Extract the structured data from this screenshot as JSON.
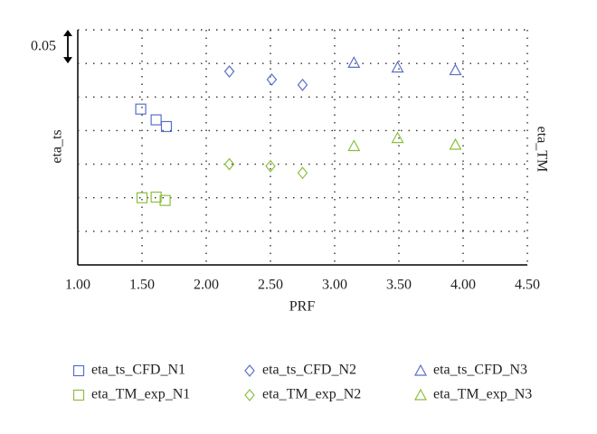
{
  "chart_data": {
    "type": "scatter",
    "x_label": "PRF",
    "y_label": "eta_ts",
    "y2_label": "eta_TM",
    "scale_bar": {
      "value": 0.05,
      "label": "0.05"
    },
    "xlim": [
      1.0,
      4.5
    ],
    "xticks": [
      {
        "value": 1.0,
        "label": "1.00"
      },
      {
        "value": 1.5,
        "label": "1.50"
      },
      {
        "value": 2.0,
        "label": "2.00"
      },
      {
        "value": 2.5,
        "label": "2.50"
      },
      {
        "value": 3.0,
        "label": "3.00"
      },
      {
        "value": 3.5,
        "label": "3.50"
      },
      {
        "value": 4.0,
        "label": "4.00"
      },
      {
        "value": 4.5,
        "label": "4.50"
      }
    ],
    "ylim": [
      0,
      0.35
    ],
    "grid": true,
    "series": [
      {
        "name": "eta_ts_CFD_N1",
        "marker": "square",
        "color": "#5a6fc8",
        "x": [
          1.49,
          1.61,
          1.69
        ],
        "values": [
          0.232,
          0.216,
          0.206
        ]
      },
      {
        "name": "eta_ts_CFD_N2",
        "marker": "diamond",
        "color": "#5a6fc8",
        "x": [
          2.18,
          2.51,
          2.75
        ],
        "values": [
          0.288,
          0.276,
          0.268
        ]
      },
      {
        "name": "eta_ts_CFD_N3",
        "marker": "triangle",
        "color": "#5a6fc8",
        "x": [
          3.15,
          3.49,
          3.94
        ],
        "values": [
          0.301,
          0.294,
          0.29
        ]
      },
      {
        "name": "eta_TM_exp_N1",
        "marker": "square",
        "color": "#8cbf3f",
        "x": [
          1.5,
          1.61,
          1.68
        ],
        "values": [
          0.1,
          0.101,
          0.096
        ]
      },
      {
        "name": "eta_TM_exp_N2",
        "marker": "diamond",
        "color": "#8cbf3f",
        "x": [
          2.18,
          2.5,
          2.75
        ],
        "values": [
          0.15,
          0.147,
          0.137
        ]
      },
      {
        "name": "eta_TM_exp_N3",
        "marker": "triangle",
        "color": "#8cbf3f",
        "x": [
          3.15,
          3.49,
          3.94
        ],
        "values": [
          0.177,
          0.189,
          0.179
        ]
      }
    ]
  }
}
